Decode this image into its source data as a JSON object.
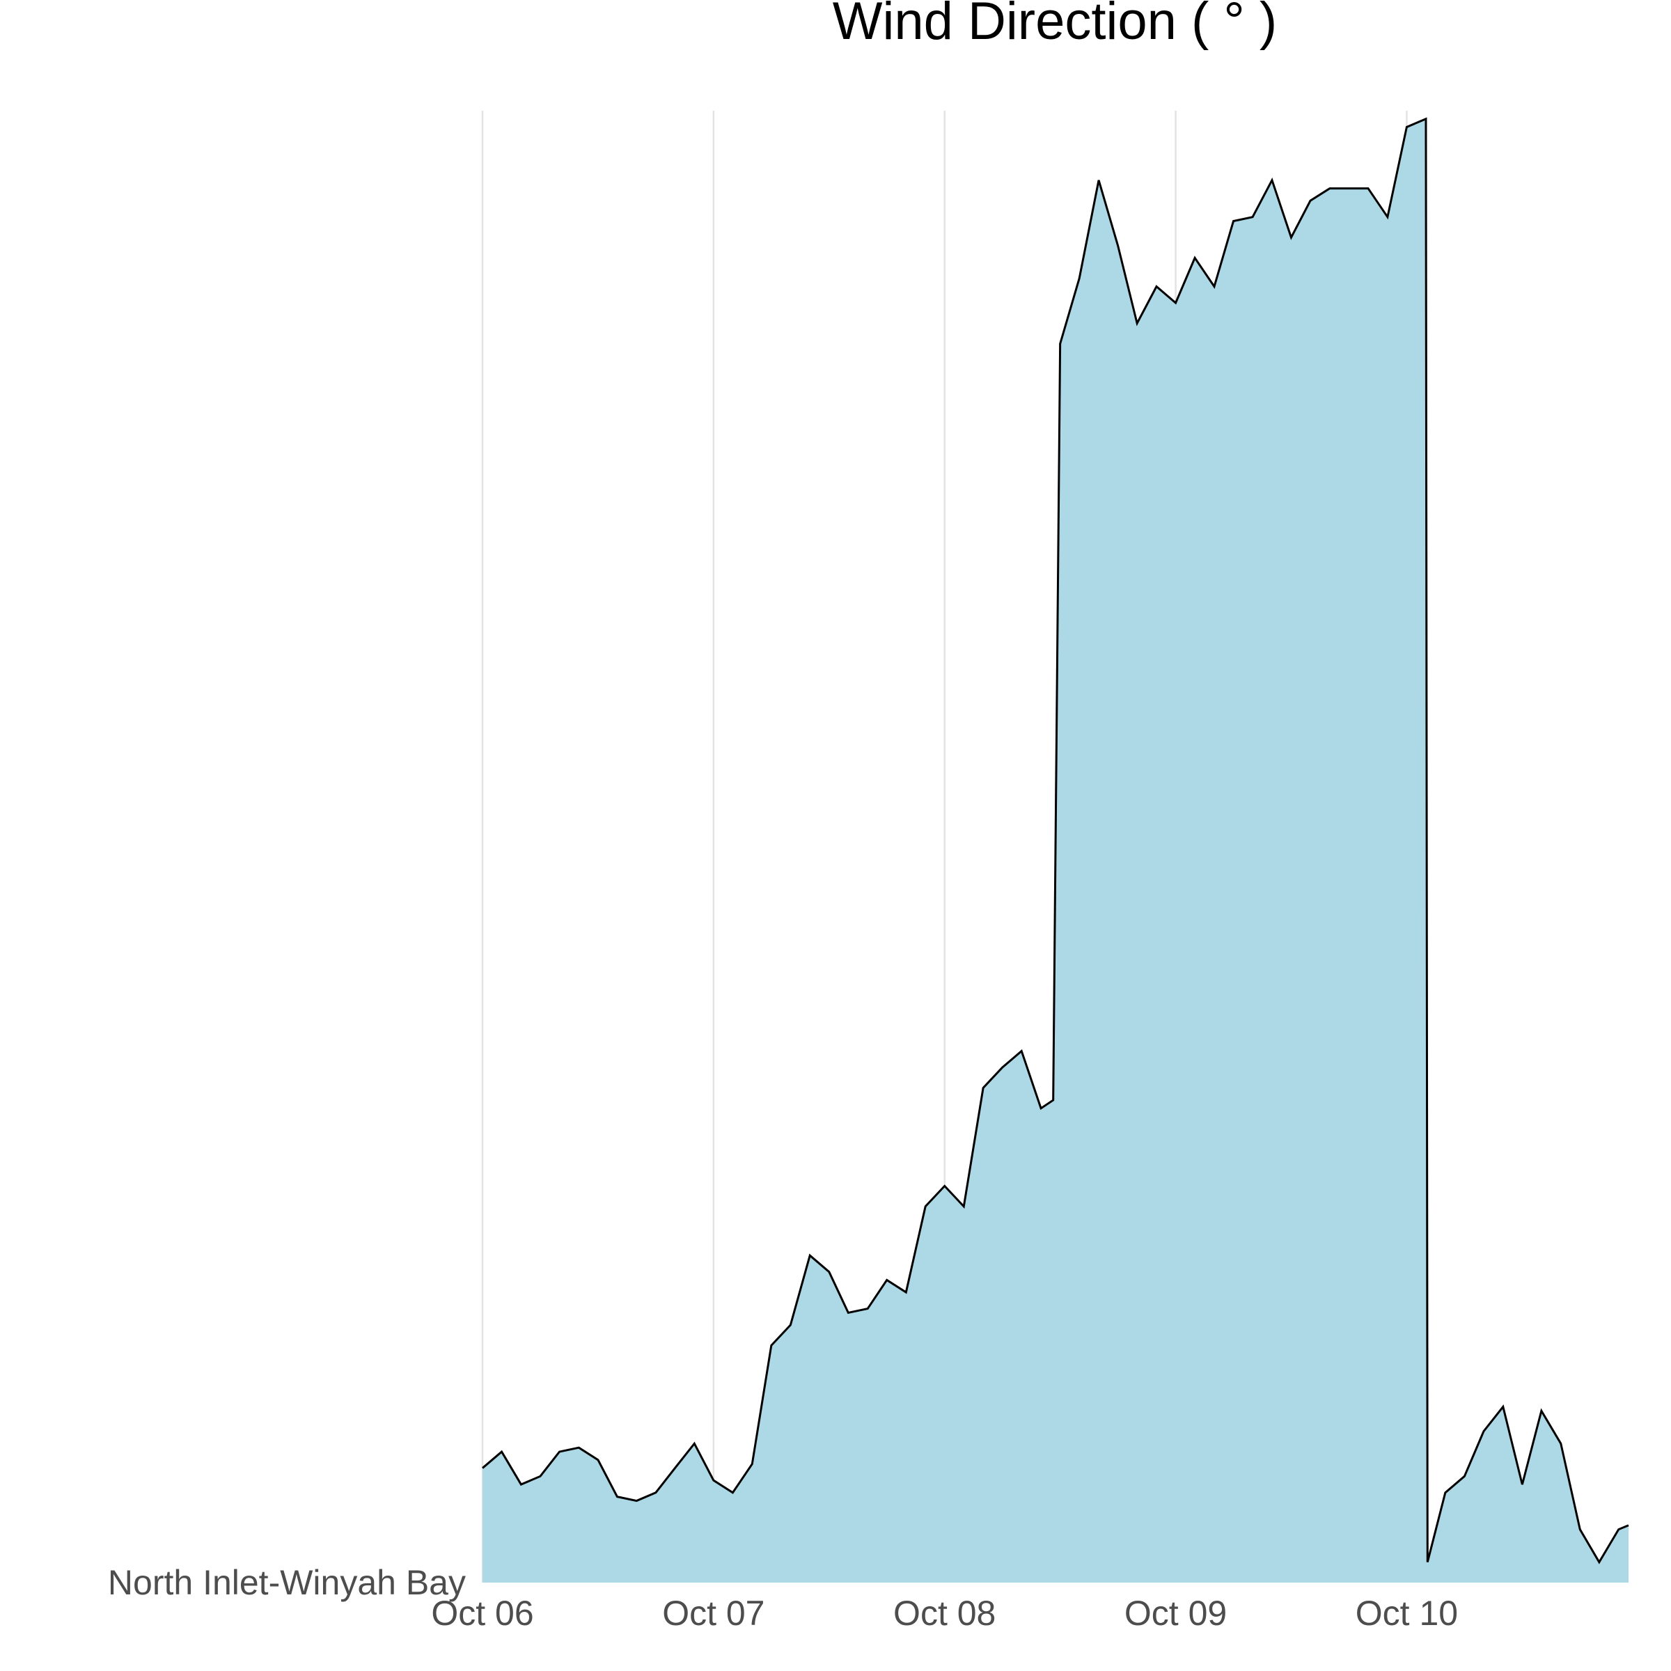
{
  "chart_data": {
    "type": "area",
    "title": "Wind Direction ( ° )",
    "x": [
      0,
      0.083,
      0.167,
      0.25,
      0.333,
      0.417,
      0.5,
      0.583,
      0.667,
      0.75,
      0.833,
      0.917,
      1.0,
      1.083,
      1.167,
      1.25,
      1.333,
      1.417,
      1.5,
      1.583,
      1.667,
      1.75,
      1.833,
      1.917,
      2.0,
      2.083,
      2.167,
      2.25,
      2.333,
      2.417,
      2.47,
      2.5,
      2.583,
      2.667,
      2.75,
      2.833,
      2.917,
      3.0,
      3.083,
      3.167,
      3.25,
      3.333,
      3.417,
      3.5,
      3.583,
      3.667,
      3.75,
      3.833,
      3.917,
      4.0,
      4.083,
      4.09,
      4.167,
      4.25,
      4.333,
      4.417,
      4.5,
      4.583,
      4.667,
      4.75,
      4.833,
      4.917,
      4.96
    ],
    "series": [
      {
        "name": "North Inlet-Winyah Bay",
        "color": "#add8e6",
        "line_color": "#000000",
        "values": [
          28,
          32,
          24,
          26,
          32,
          33,
          30,
          21,
          20,
          22,
          28,
          34,
          25,
          22,
          29,
          58,
          63,
          80,
          76,
          66,
          67,
          74,
          71,
          92,
          97,
          92,
          121,
          126,
          130,
          116,
          118,
          303,
          319,
          343,
          327,
          308,
          317,
          313,
          324,
          317,
          333,
          334,
          343,
          329,
          338,
          341,
          341,
          341,
          334,
          356,
          358,
          5,
          22,
          26,
          37,
          43,
          24,
          42,
          34,
          13,
          5,
          13,
          14
        ]
      }
    ],
    "xlim": [
      0,
      4.96
    ],
    "xticks": [
      {
        "value": 0,
        "label": "Oct 06"
      },
      {
        "value": 1,
        "label": "Oct 07"
      },
      {
        "value": 2,
        "label": "Oct 08"
      },
      {
        "value": 3,
        "label": "Oct 09"
      },
      {
        "value": 4,
        "label": "Oct 10"
      }
    ],
    "ylim": [
      0,
      360
    ],
    "grid": true
  }
}
